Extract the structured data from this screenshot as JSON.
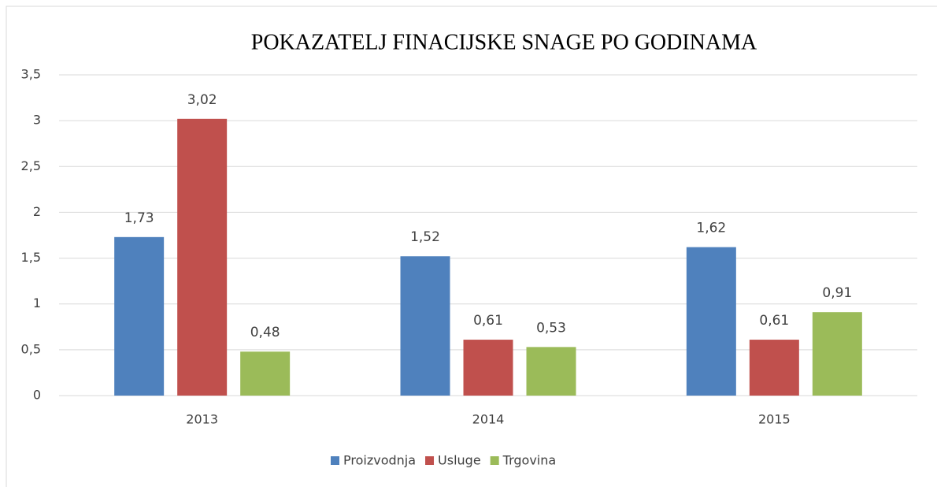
{
  "chart_data": {
    "type": "bar",
    "title": "POKAZATELJ FINACIJSKE SNAGE PO GODINAMA",
    "categories": [
      "2013",
      "2014",
      "2015"
    ],
    "series": [
      {
        "name": "Proizvodnja",
        "color": "#4f81bd",
        "values": [
          1.73,
          1.52,
          1.62
        ],
        "value_labels": [
          "1,73",
          "1,52",
          "1,62"
        ]
      },
      {
        "name": "Usluge",
        "color": "#c0504d",
        "values": [
          3.02,
          0.61,
          0.61
        ],
        "value_labels": [
          "3,02",
          "0,61",
          "0,61"
        ]
      },
      {
        "name": "Trgovina",
        "color": "#9bbb59",
        "values": [
          0.48,
          0.53,
          0.91
        ],
        "value_labels": [
          "0,48",
          "0,53",
          "0,91"
        ]
      }
    ],
    "ylim": [
      0,
      3.5
    ],
    "yticks": [
      0,
      {
        "value": 0.5,
        "label": "0,5"
      },
      1,
      {
        "value": 1.5,
        "label": "1,5"
      },
      2,
      {
        "value": 2.5,
        "label": "2,5"
      },
      3,
      {
        "value": 3.5,
        "label": "3,5"
      }
    ],
    "grid": true,
    "legend": "bottom"
  }
}
